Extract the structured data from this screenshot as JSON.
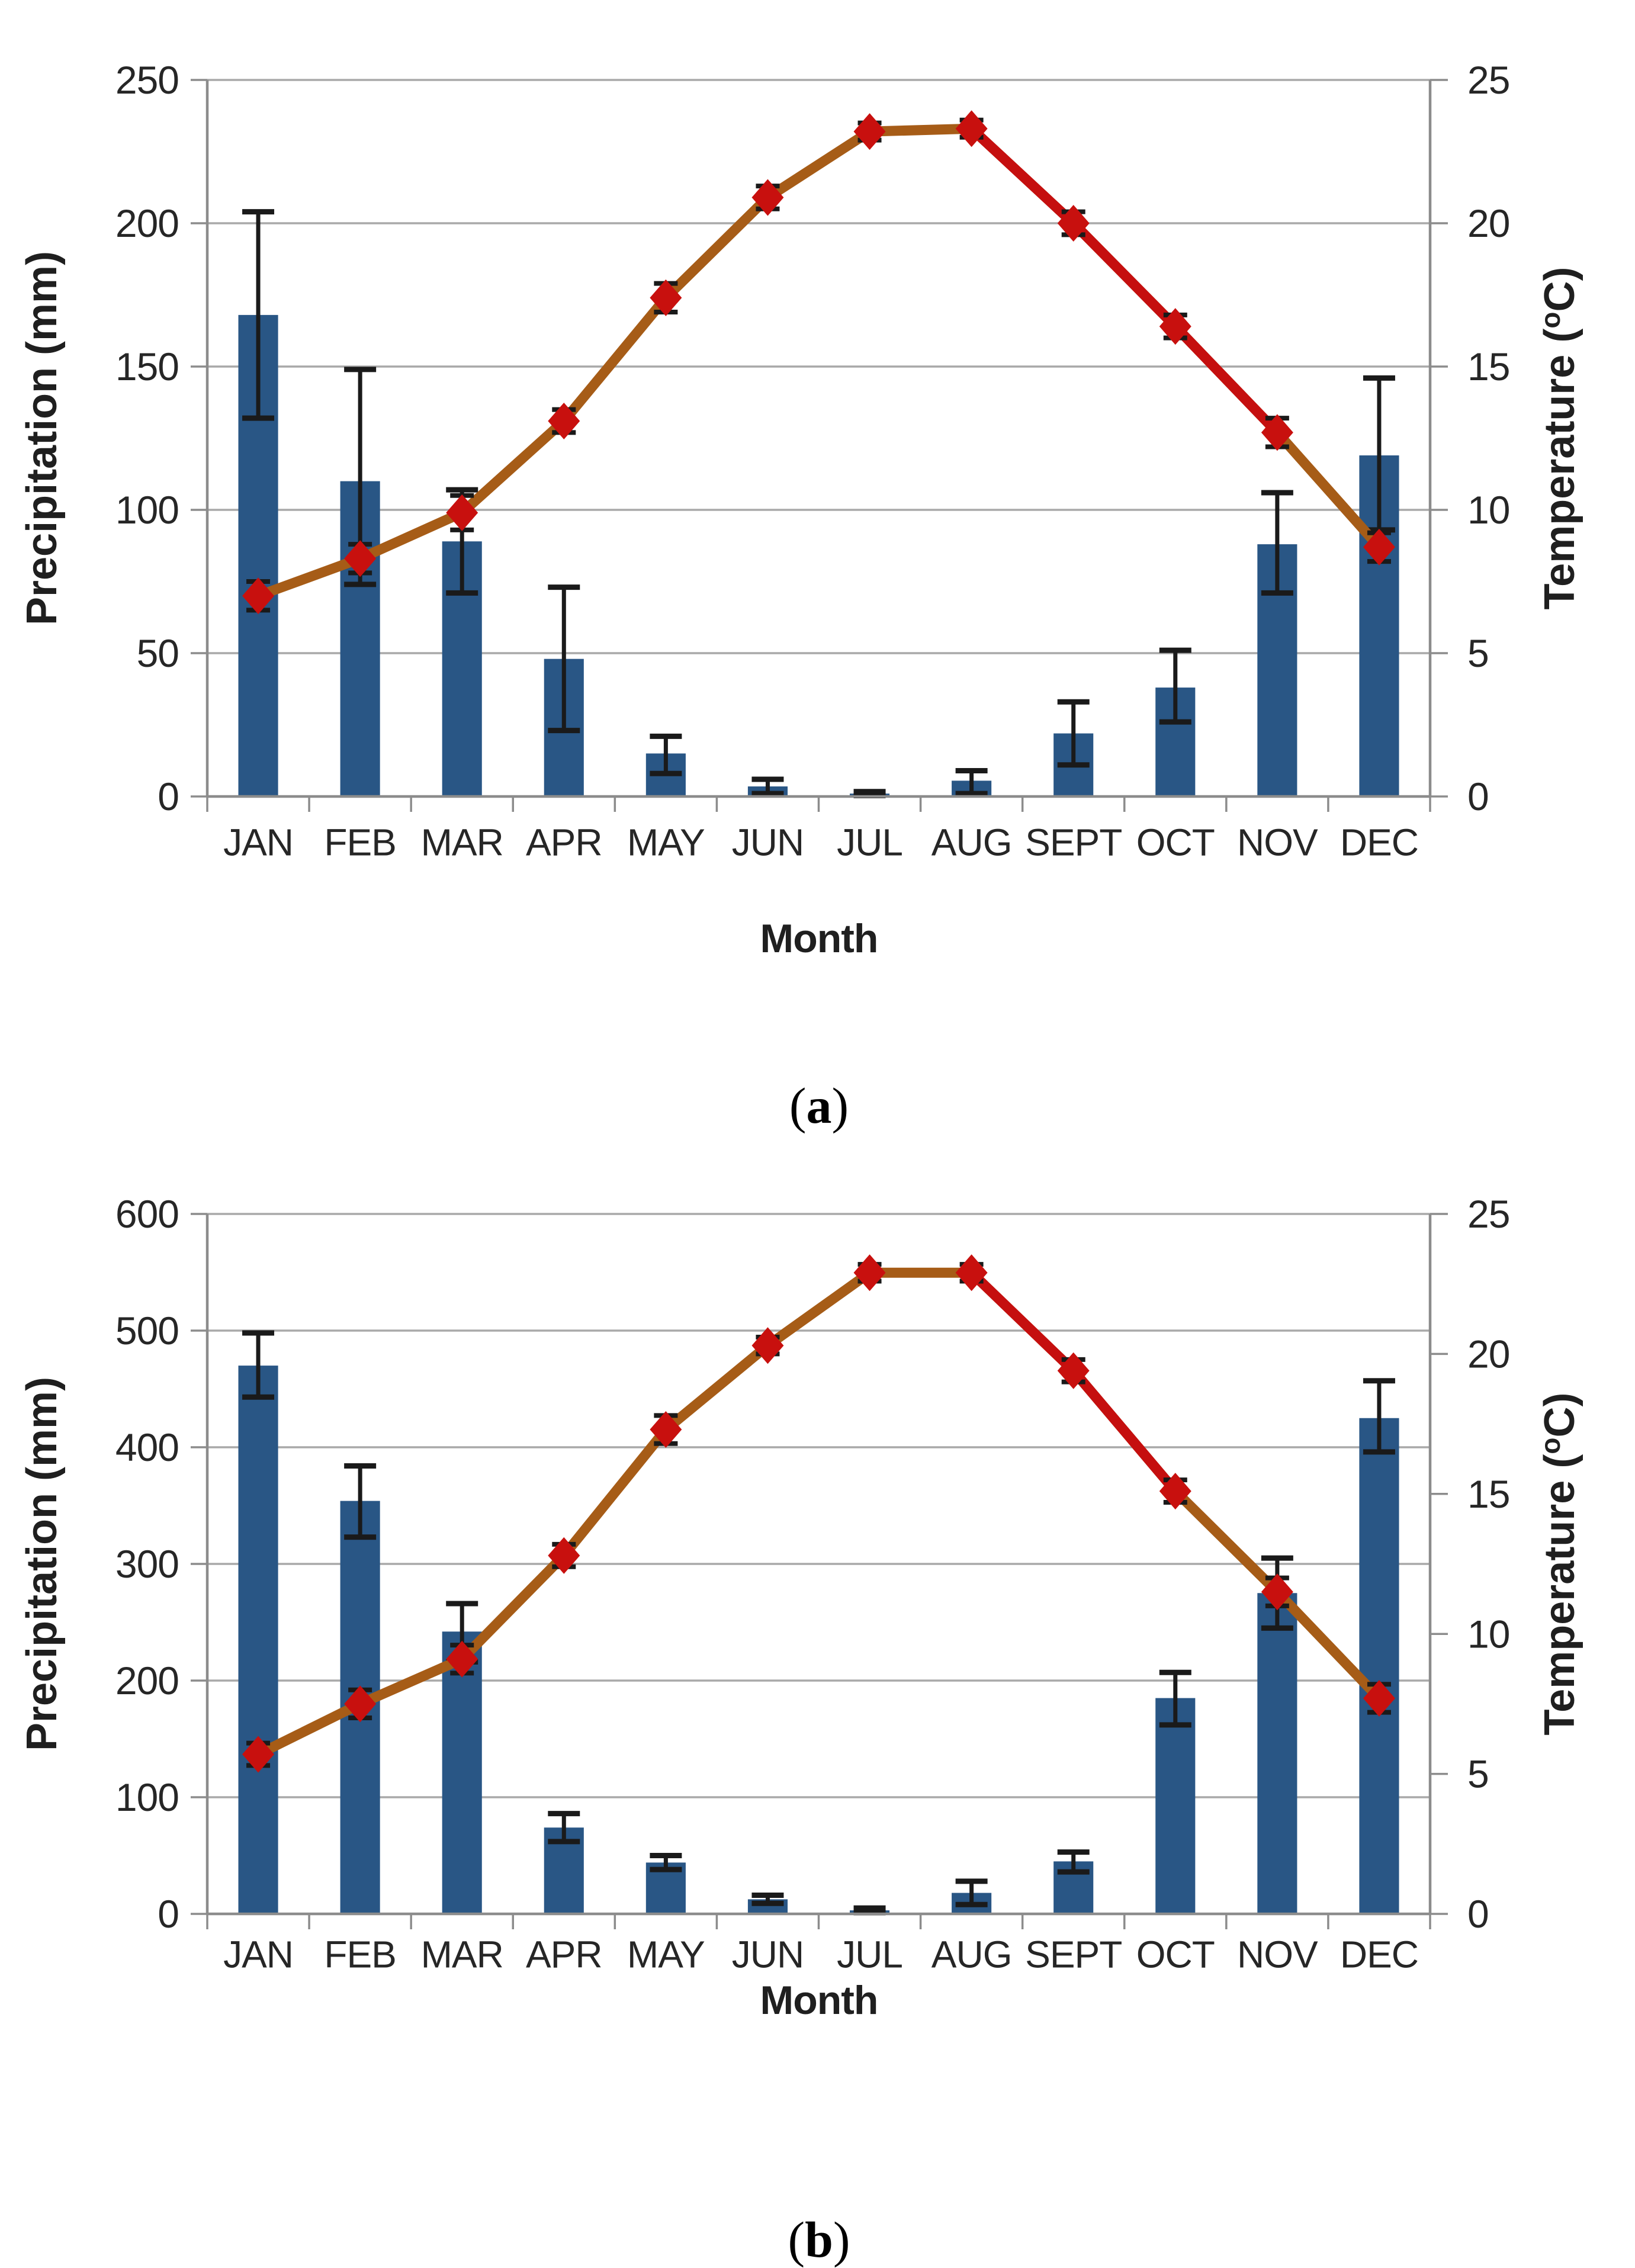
{
  "figure": {
    "background": "#ffffff",
    "text_color": "#262626",
    "grid_color": "#A9A9A9",
    "axis_color": "#8C8C8C",
    "error_bar_color": "#1a1a1a"
  },
  "chart_data": [
    {
      "type": "bar",
      "subtype": "bar+line-dual-axis",
      "panel_label": "(a)",
      "panel_label_parts": {
        "open": "(",
        "letter": "a",
        "close": ")"
      },
      "xlabel": "Month",
      "categories": [
        "JAN",
        "FEB",
        "MAR",
        "APR",
        "MAY",
        "JUN",
        "JUL",
        "AUG",
        "SEPT",
        "OCT",
        "NOV",
        "DEC"
      ],
      "grid": true,
      "legend": "none",
      "left_axis": {
        "title": "Precipitation (mm)",
        "min": 0,
        "max": 250,
        "step": 50,
        "tick_labels": [
          "0",
          "50",
          "100",
          "150",
          "200",
          "250"
        ]
      },
      "right_axis": {
        "title": "Temperature (°C)",
        "title_pre": "Temperature (",
        "title_sup": "o",
        "title_post": "C)",
        "min": 0,
        "max": 25,
        "step": 5,
        "tick_labels": [
          "0",
          "5",
          "10",
          "15",
          "20",
          "25"
        ]
      },
      "series": [
        {
          "name": "Precipitation",
          "type": "bar",
          "axis": "left",
          "color": "#295685",
          "values": [
            168,
            110,
            89,
            48,
            15,
            3.5,
            1,
            5.5,
            22,
            38,
            88,
            119
          ],
          "err_low": [
            132,
            74,
            71,
            23,
            8,
            1,
            0.3,
            1,
            11,
            26,
            71,
            93
          ],
          "err_high": [
            204,
            149,
            107,
            73,
            21,
            6,
            1.7,
            9,
            33,
            51,
            106,
            146
          ]
        },
        {
          "name": "Temperature",
          "type": "line",
          "axis": "right",
          "line_color": "#A65C17",
          "line_color_descent": "#C50F0F",
          "marker": "diamond",
          "marker_color": "#C8100E",
          "values": [
            7.0,
            8.3,
            9.9,
            13.1,
            17.4,
            20.9,
            23.2,
            23.3,
            20.0,
            16.4,
            12.7,
            8.7
          ],
          "err": [
            0.5,
            0.5,
            0.6,
            0.4,
            0.5,
            0.4,
            0.3,
            0.3,
            0.4,
            0.4,
            0.5,
            0.5
          ],
          "red_segment_indices": [
            7,
            10
          ]
        }
      ]
    },
    {
      "type": "bar",
      "subtype": "bar+line-dual-axis",
      "panel_label": "(b)",
      "panel_label_parts": {
        "open": "(",
        "letter": "b",
        "close": ")"
      },
      "xlabel": "Month",
      "categories": [
        "JAN",
        "FEB",
        "MAR",
        "APR",
        "MAY",
        "JUN",
        "JUL",
        "AUG",
        "SEPT",
        "OCT",
        "NOV",
        "DEC"
      ],
      "grid": true,
      "legend": "none",
      "left_axis": {
        "title": "Precipitation (mm)",
        "min": 0,
        "max": 600,
        "step": 100,
        "tick_labels": [
          "0",
          "100",
          "200",
          "300",
          "400",
          "500",
          "600"
        ]
      },
      "right_axis": {
        "title": "Temperature (°C)",
        "title_pre": "Temperature (",
        "title_sup": "o",
        "title_post": "C)",
        "min": 0,
        "max": 25,
        "step": 5,
        "tick_labels": [
          "0",
          "5",
          "10",
          "15",
          "20",
          "25"
        ]
      },
      "series": [
        {
          "name": "Precipitation",
          "type": "bar",
          "axis": "left",
          "color": "#295685",
          "values": [
            470,
            354,
            242,
            74,
            44,
            12.5,
            3,
            18,
            45,
            185,
            275,
            425
          ],
          "err_low": [
            443,
            323,
            216,
            62,
            38,
            9,
            1,
            8,
            36,
            162,
            245,
            396
          ],
          "err_high": [
            498,
            384,
            266,
            86,
            50,
            16,
            5,
            28,
            53,
            207,
            305,
            457
          ]
        },
        {
          "name": "Temperature",
          "type": "line",
          "axis": "right",
          "line_color": "#A65C17",
          "line_color_descent": "#C50F0F",
          "marker": "diamond",
          "marker_color": "#C8100E",
          "values": [
            5.7,
            7.5,
            9.1,
            12.8,
            17.3,
            20.3,
            22.9,
            22.9,
            19.4,
            15.1,
            11.5,
            7.7
          ],
          "err": [
            0.4,
            0.5,
            0.5,
            0.4,
            0.5,
            0.3,
            0.3,
            0.3,
            0.4,
            0.4,
            0.5,
            0.5
          ],
          "red_segment_indices": [
            7,
            9
          ]
        }
      ]
    }
  ]
}
